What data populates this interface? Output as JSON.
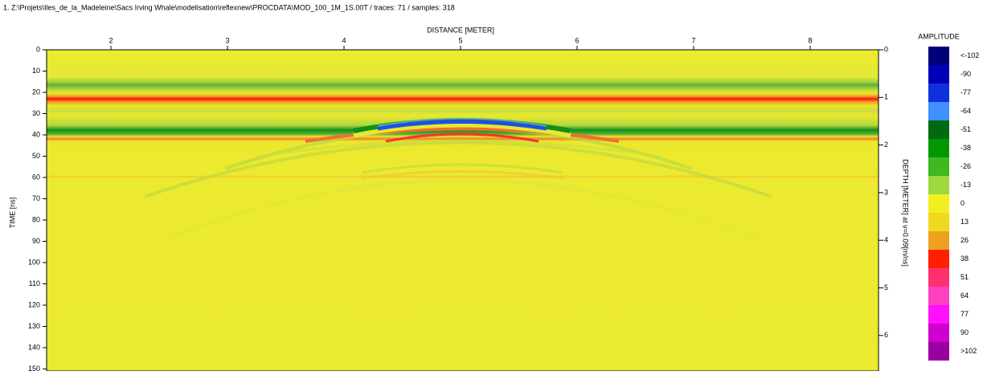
{
  "header": {
    "title": "1. Z:\\Projets\\Iles_de_la_Madeleine\\Sacs Irving Whale\\modelisation\\reflexnew\\PROCDATA\\MOD_100_1M_1S.00T / traces: 71 / samples: 318"
  },
  "x_axis": {
    "label": "DISTANCE [METER]",
    "ticks": [
      2,
      3,
      4,
      5,
      6,
      7,
      8
    ]
  },
  "y_axis": {
    "label": "TIME [ns]",
    "ticks": [
      0,
      10,
      20,
      30,
      40,
      50,
      60,
      70,
      80,
      90,
      100,
      110,
      120,
      130,
      140,
      150
    ]
  },
  "depth_axis": {
    "label": "DEPTH [METER] at v=0.09[m/ns]",
    "ticks": [
      0,
      1,
      2,
      3,
      4,
      5,
      6
    ]
  },
  "colorbar": {
    "title": "AMPLITUDE",
    "labels": [
      "<-102",
      -90,
      -77,
      -64,
      -51,
      -38,
      -26,
      -13,
      0,
      13,
      26,
      38,
      51,
      64,
      77,
      90,
      ">102"
    ]
  }
}
